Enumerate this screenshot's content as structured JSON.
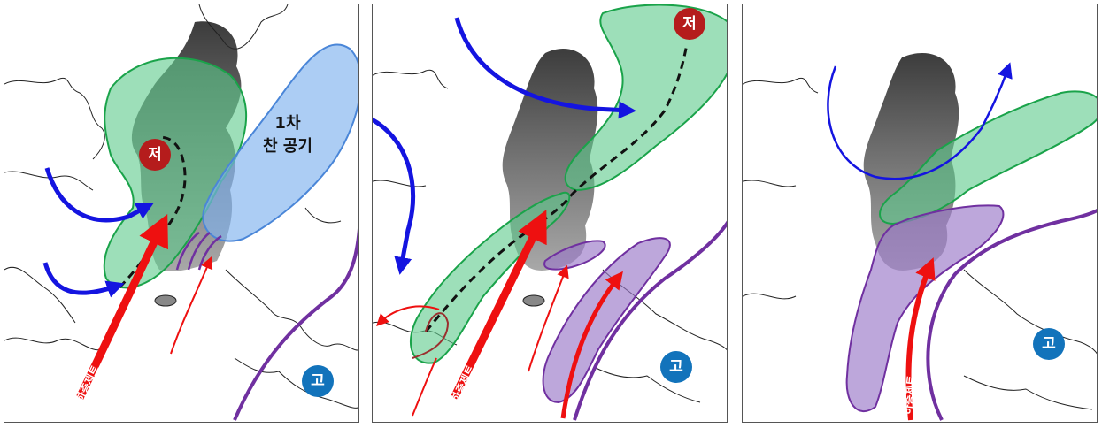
{
  "panels": [
    {
      "low": "저",
      "high": "고",
      "cold_air_line1": "1차",
      "cold_air_line2": "찬 공기",
      "jet": "하층제트"
    },
    {
      "low": "저",
      "high": "고",
      "jet": "하층제트"
    },
    {
      "high": "고",
      "jet": "하층제트"
    }
  ],
  "colors": {
    "low_badge": "#b51c1c",
    "high_badge": "#1273bb",
    "moist_zone_green": "#5cc98a",
    "cold_air_blue": "#7fb2ee",
    "rain_zone_purple": "#9a78c8",
    "flow_arrow_blue": "#1414e0",
    "jet_arrow_red": "#ee1010",
    "boundary_purple": "#7030a0"
  }
}
